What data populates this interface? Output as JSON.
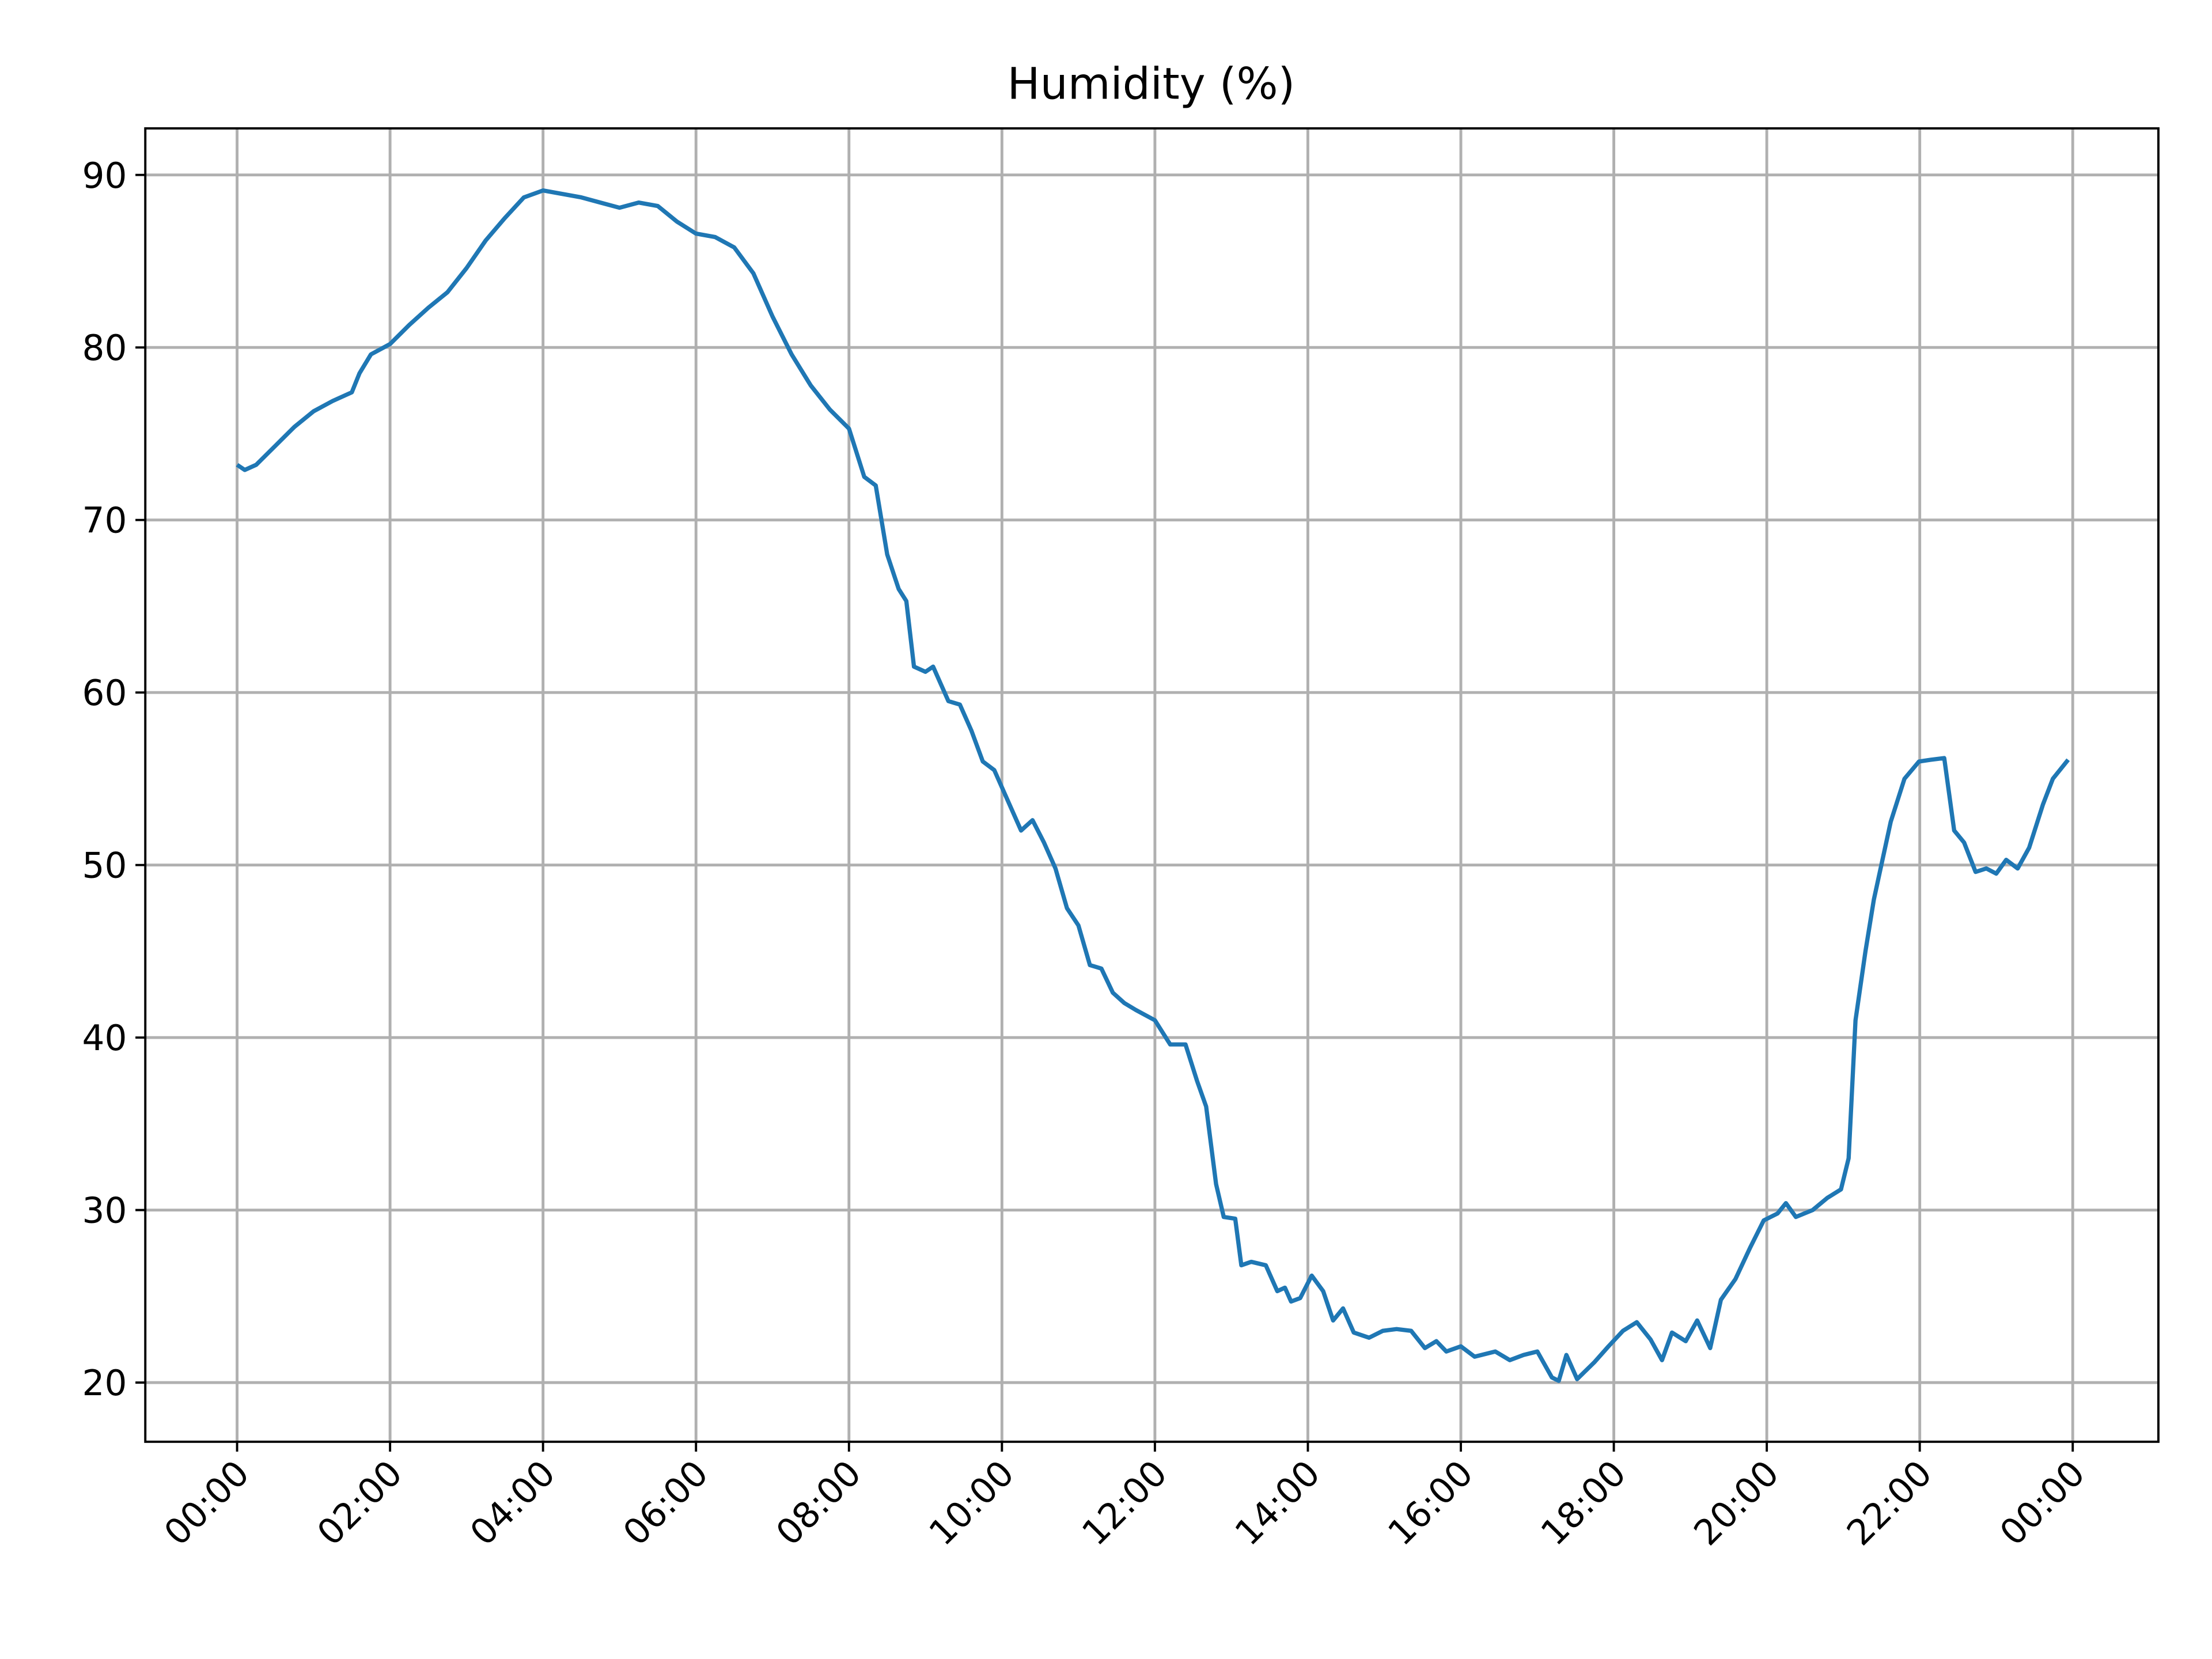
{
  "chart_data": {
    "type": "line",
    "title": "Humidity (%)",
    "x": [
      0,
      0.1,
      0.25,
      0.5,
      0.75,
      1.0,
      1.25,
      1.5,
      1.6,
      1.75,
      2.0,
      2.25,
      2.5,
      2.75,
      3.0,
      3.25,
      3.5,
      3.75,
      4.0,
      4.25,
      4.5,
      4.75,
      5.0,
      5.25,
      5.5,
      5.75,
      6.0,
      6.25,
      6.5,
      6.75,
      7.0,
      7.25,
      7.5,
      7.75,
      8.0,
      8.2,
      8.35,
      8.5,
      8.65,
      8.75,
      8.85,
      9.0,
      9.1,
      9.3,
      9.45,
      9.6,
      9.75,
      9.9,
      10.05,
      10.25,
      10.4,
      10.55,
      10.7,
      10.85,
      11.0,
      11.15,
      11.3,
      11.45,
      11.6,
      11.75,
      12.0,
      12.2,
      12.4,
      12.55,
      12.67,
      12.8,
      12.9,
      13.05,
      13.13,
      13.26,
      13.45,
      13.6,
      13.7,
      13.78,
      13.9,
      14.05,
      14.2,
      14.33,
      14.46,
      14.6,
      14.8,
      14.98,
      15.16,
      15.35,
      15.53,
      15.68,
      15.81,
      16.0,
      16.18,
      16.45,
      16.64,
      16.82,
      17.0,
      17.19,
      17.28,
      17.38,
      17.52,
      17.75,
      17.93,
      18.12,
      18.3,
      18.48,
      18.63,
      18.76,
      18.94,
      19.09,
      19.26,
      19.4,
      19.59,
      19.78,
      19.96,
      20.14,
      20.25,
      20.38,
      20.6,
      20.79,
      20.97,
      21.07,
      21.16,
      21.29,
      21.4,
      21.62,
      21.8,
      21.99,
      22.14,
      22.32,
      22.45,
      22.58,
      22.73,
      22.87,
      23.0,
      23.13,
      23.28,
      23.43,
      23.61,
      23.74,
      23.94
    ],
    "series": [
      {
        "name": "Humidity",
        "color": "#1f77b4",
        "values": [
          73.2,
          72.9,
          73.2,
          74.3,
          75.4,
          76.3,
          76.9,
          77.4,
          78.5,
          79.6,
          80.2,
          81.3,
          82.3,
          83.2,
          84.6,
          86.2,
          87.5,
          88.7,
          89.1,
          88.9,
          88.7,
          88.4,
          88.1,
          88.4,
          88.2,
          87.3,
          86.6,
          86.4,
          85.8,
          84.3,
          81.8,
          79.6,
          77.8,
          76.4,
          75.3,
          72.5,
          72.0,
          68.0,
          66.0,
          65.3,
          61.5,
          61.2,
          61.5,
          59.5,
          59.3,
          57.8,
          56.0,
          55.5,
          54.0,
          52.0,
          52.6,
          51.3,
          49.8,
          47.5,
          46.5,
          44.2,
          44.0,
          42.6,
          42.0,
          41.6,
          41.0,
          39.6,
          39.6,
          37.5,
          36.0,
          31.5,
          29.6,
          29.5,
          26.8,
          27.0,
          26.8,
          25.3,
          25.5,
          24.7,
          24.9,
          26.2,
          25.3,
          23.6,
          24.3,
          22.9,
          22.6,
          23.0,
          23.1,
          23.0,
          22.0,
          22.4,
          21.8,
          22.1,
          21.5,
          21.8,
          21.3,
          21.6,
          21.8,
          20.3,
          20.1,
          21.6,
          20.2,
          21.2,
          22.1,
          23.0,
          23.5,
          22.5,
          21.3,
          22.9,
          22.4,
          23.6,
          22.0,
          24.8,
          26.0,
          27.8,
          29.4,
          29.8,
          30.4,
          29.6,
          30.0,
          30.7,
          31.2,
          33.0,
          41.0,
          45.0,
          48.0,
          52.5,
          55.0,
          56.0,
          56.1,
          56.2,
          52.0,
          51.3,
          49.6,
          49.8,
          49.5,
          50.3,
          49.8,
          51.0,
          53.5,
          55.0,
          56.1
        ]
      }
    ],
    "xlim": [
      -1.2,
      25.12
    ],
    "xticks": [
      {
        "value": 0,
        "label": "00:00"
      },
      {
        "value": 2,
        "label": "02:00"
      },
      {
        "value": 4,
        "label": "04:00"
      },
      {
        "value": 6,
        "label": "06:00"
      },
      {
        "value": 8,
        "label": "08:00"
      },
      {
        "value": 10,
        "label": "10:00"
      },
      {
        "value": 12,
        "label": "12:00"
      },
      {
        "value": 14,
        "label": "14:00"
      },
      {
        "value": 16,
        "label": "16:00"
      },
      {
        "value": 18,
        "label": "18:00"
      },
      {
        "value": 20,
        "label": "20:00"
      },
      {
        "value": 22,
        "label": "22:00"
      },
      {
        "value": 24,
        "label": "00:00"
      }
    ],
    "ylim": [
      16.57,
      92.7
    ],
    "yticks": [
      20,
      30,
      40,
      50,
      60,
      70,
      80,
      90
    ],
    "grid": true
  }
}
